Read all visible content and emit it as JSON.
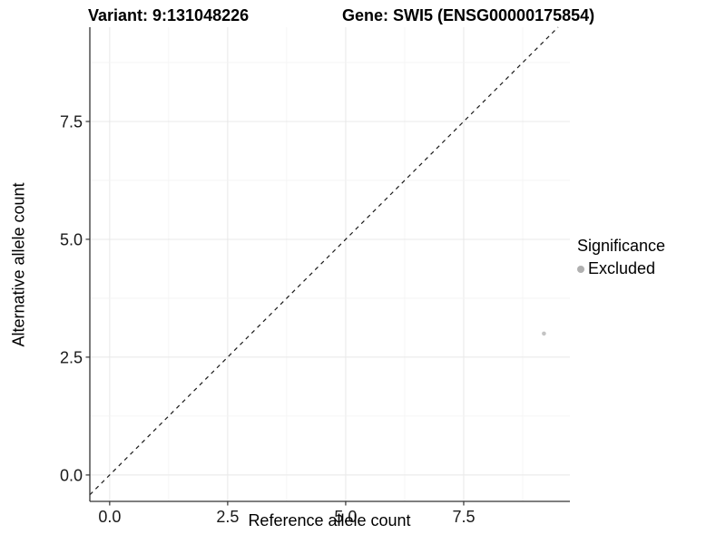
{
  "chart_data": {
    "type": "scatter",
    "title_left": "Variant: 9:131048226",
    "title_right": "Gene: SWI5 (ENSG00000175854)",
    "xlabel": "Reference allele count",
    "ylabel": "Alternative allele count",
    "xlim": [
      -0.42,
      9.75
    ],
    "ylim": [
      -0.56,
      9.5
    ],
    "x_ticks": {
      "values": [
        0,
        2.5,
        5,
        7.5
      ],
      "labels": [
        "0.0",
        "2.5",
        "5.0",
        "7.5"
      ]
    },
    "y_ticks": {
      "values": [
        0,
        2.5,
        5,
        7.5
      ],
      "labels": [
        "0.0",
        "2.5",
        "5.0",
        "7.5"
      ]
    },
    "grid": {
      "minor_interval": 1.25,
      "major_interval": 2.5,
      "visible": true
    },
    "reference_line": {
      "kind": "abline",
      "slope": 1,
      "intercept": 0,
      "style": "dashed"
    },
    "series": [
      {
        "name": "Excluded",
        "color": "#c4c4c4",
        "points": [
          {
            "x": 9.2,
            "y": 3.0
          }
        ]
      }
    ],
    "legend": {
      "title": "Significance",
      "position": "right",
      "entries": [
        {
          "label": "Excluded",
          "color": "#b0b0b0"
        }
      ]
    },
    "colors": {
      "axis_line": "#333333",
      "tick_mark": "#333333",
      "tick_label": "#1a1a1a",
      "grid_major": "#e8e8e8",
      "grid_minor": "#f3f3f3",
      "reference_line": "#1a1a1a",
      "title": "#000000",
      "background": "#ffffff"
    },
    "point_radius": 2.3,
    "legend_dot_color": "#b0b0b0"
  }
}
